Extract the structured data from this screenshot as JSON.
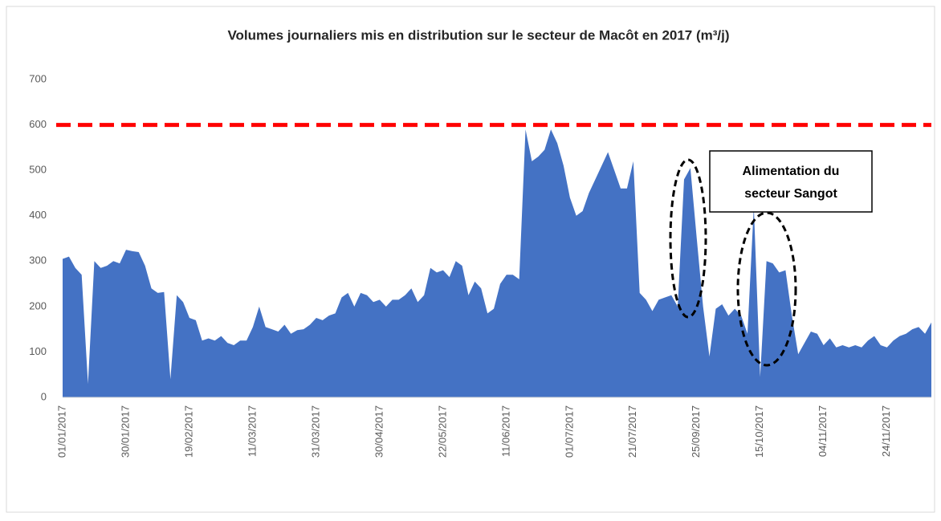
{
  "chart_data": {
    "type": "area",
    "title": "Volumes journaliers mis en distribution sur le secteur de Macôt en 2017 (m³/j)",
    "categories": [
      "01/01/2017",
      null,
      null,
      null,
      null,
      null,
      null,
      null,
      null,
      null,
      "30/01/2017",
      null,
      null,
      null,
      null,
      null,
      null,
      null,
      null,
      null,
      "19/02/2017",
      null,
      null,
      null,
      null,
      null,
      null,
      null,
      null,
      null,
      "11/03/2017",
      null,
      null,
      null,
      null,
      null,
      null,
      null,
      null,
      null,
      "31/03/2017",
      null,
      null,
      null,
      null,
      null,
      null,
      null,
      null,
      null,
      "30/04/2017",
      null,
      null,
      null,
      null,
      null,
      null,
      null,
      null,
      null,
      "22/05/2017",
      null,
      null,
      null,
      null,
      null,
      null,
      null,
      null,
      null,
      "11/06/2017",
      null,
      null,
      null,
      null,
      null,
      null,
      null,
      null,
      null,
      "01/07/2017",
      null,
      null,
      null,
      null,
      null,
      null,
      null,
      null,
      null,
      "21/07/2017",
      null,
      null,
      null,
      null,
      null,
      null,
      null,
      null,
      null,
      "25/09/2017",
      null,
      null,
      null,
      null,
      null,
      null,
      null,
      null,
      null,
      "15/10/2017",
      null,
      null,
      null,
      null,
      null,
      null,
      null,
      null,
      null,
      "04/11/2017",
      null,
      null,
      null,
      null,
      null,
      null,
      null,
      null,
      null,
      "24/11/2017",
      null,
      null,
      null,
      null,
      null,
      null,
      null
    ],
    "values": [
      305,
      310,
      285,
      270,
      30,
      300,
      285,
      290,
      300,
      295,
      325,
      322,
      320,
      290,
      240,
      230,
      232,
      40,
      225,
      210,
      175,
      170,
      125,
      130,
      125,
      135,
      120,
      115,
      125,
      125,
      155,
      200,
      155,
      150,
      145,
      160,
      140,
      148,
      150,
      160,
      175,
      170,
      180,
      185,
      220,
      230,
      200,
      230,
      225,
      210,
      215,
      200,
      215,
      215,
      225,
      240,
      210,
      225,
      285,
      275,
      280,
      265,
      300,
      290,
      225,
      255,
      240,
      185,
      195,
      250,
      270,
      270,
      260,
      590,
      520,
      530,
      545,
      590,
      560,
      510,
      440,
      400,
      410,
      450,
      480,
      510,
      540,
      500,
      460,
      460,
      520,
      230,
      215,
      190,
      215,
      220,
      225,
      200,
      480,
      505,
      350,
      200,
      90,
      195,
      205,
      180,
      195,
      180,
      140,
      420,
      45,
      300,
      295,
      275,
      280,
      180,
      95,
      120,
      145,
      140,
      115,
      130,
      110,
      115,
      110,
      115,
      110,
      125,
      135,
      115,
      110,
      125,
      135,
      140,
      150,
      155,
      140,
      165
    ],
    "color": "#4472c4",
    "ylim": [
      0,
      700
    ],
    "yticks": [
      0,
      100,
      200,
      300,
      400,
      500,
      600,
      700
    ],
    "threshold": {
      "value": 600,
      "color": "#ff0000"
    },
    "annotation": [
      "Alimentation du",
      "secteur Sangot"
    ]
  }
}
